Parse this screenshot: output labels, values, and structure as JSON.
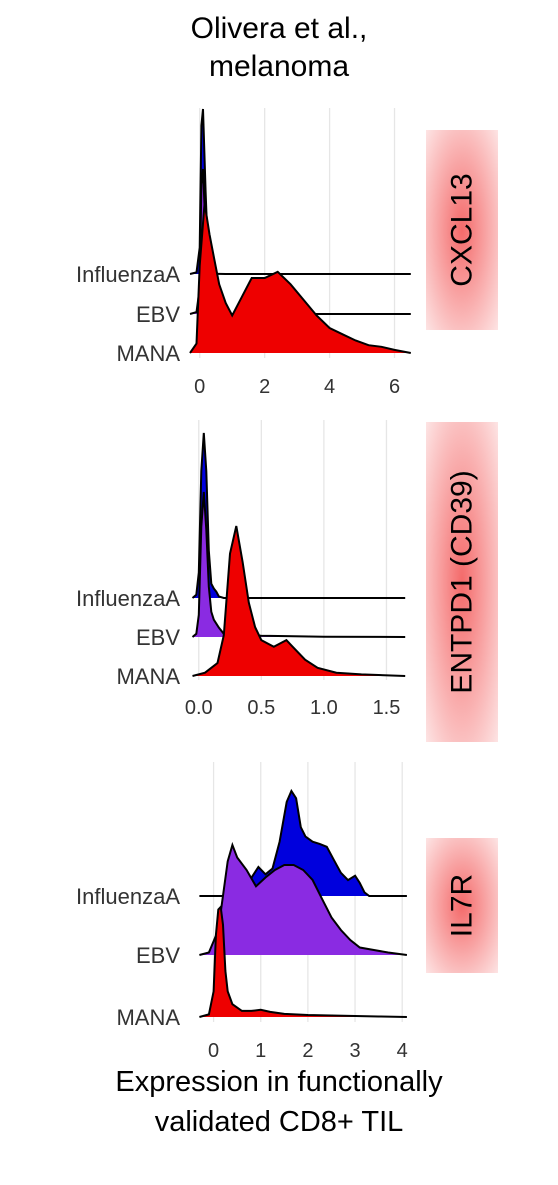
{
  "figure": {
    "title_lines": [
      "Olivera et al.,",
      "melanoma"
    ],
    "xlabel_lines": [
      "Expression in functionally",
      "validated CD8+ TIL"
    ]
  },
  "chart_data": [
    {
      "type": "area",
      "subtype": "ridgeline-density",
      "strip_label": "CXCL13",
      "strip_color": "#f46a6a",
      "xlim": [
        -0.3,
        6.6
      ],
      "xticks": [
        0,
        2,
        4,
        6
      ],
      "xtick_labels": [
        "0",
        "2",
        "4",
        "6"
      ],
      "grid": true,
      "series": [
        {
          "name": "InfluenzaA",
          "color": "#0000dd",
          "points": [
            [
              -0.3,
              0
            ],
            [
              -0.1,
              0.05
            ],
            [
              0.0,
              0.8
            ],
            [
              0.05,
              4.5
            ],
            [
              0.1,
              5.0
            ],
            [
              0.18,
              2.5
            ],
            [
              0.27,
              0.2
            ],
            [
              0.4,
              0.01
            ],
            [
              0.8,
              0
            ],
            [
              6.5,
              0
            ]
          ]
        },
        {
          "name": "EBV",
          "color": "#8a2be2",
          "points": [
            [
              -0.3,
              0
            ],
            [
              -0.1,
              0.05
            ],
            [
              0.0,
              0.7
            ],
            [
              0.05,
              3.5
            ],
            [
              0.1,
              3.9
            ],
            [
              0.18,
              2.2
            ],
            [
              0.27,
              0.3
            ],
            [
              0.4,
              0.02
            ],
            [
              0.8,
              0
            ],
            [
              6.5,
              0
            ]
          ]
        },
        {
          "name": "MANA",
          "color": "#ee0000",
          "points": [
            [
              -0.3,
              0
            ],
            [
              -0.1,
              0.03
            ],
            [
              0.0,
              0.28
            ],
            [
              0.15,
              0.48
            ],
            [
              0.3,
              0.38
            ],
            [
              0.45,
              0.3
            ],
            [
              0.6,
              0.22
            ],
            [
              0.8,
              0.16
            ],
            [
              1.0,
              0.12
            ],
            [
              1.3,
              0.18
            ],
            [
              1.6,
              0.24
            ],
            [
              2.0,
              0.24
            ],
            [
              2.4,
              0.26
            ],
            [
              2.8,
              0.22
            ],
            [
              3.2,
              0.17
            ],
            [
              3.6,
              0.12
            ],
            [
              4.0,
              0.08
            ],
            [
              4.4,
              0.06
            ],
            [
              4.8,
              0.04
            ],
            [
              5.2,
              0.025
            ],
            [
              5.6,
              0.02
            ],
            [
              6.0,
              0.01
            ],
            [
              6.5,
              0
            ]
          ]
        }
      ]
    },
    {
      "type": "area",
      "subtype": "ridgeline-density",
      "strip_label": "ENTPD1 (CD39)",
      "strip_color": "#f46a6a",
      "xlim": [
        -0.07,
        1.72
      ],
      "xticks": [
        0.0,
        0.5,
        1.0,
        1.5
      ],
      "xtick_labels": [
        "0.0",
        "0.5",
        "1.0",
        "1.5"
      ],
      "grid": true,
      "series": [
        {
          "name": "InfluenzaA",
          "color": "#0000dd",
          "points": [
            [
              -0.05,
              0
            ],
            [
              -0.02,
              0.1
            ],
            [
              0.0,
              0.8
            ],
            [
              0.02,
              4.0
            ],
            [
              0.04,
              5.2
            ],
            [
              0.06,
              4.0
            ],
            [
              0.08,
              1.5
            ],
            [
              0.1,
              0.45
            ],
            [
              0.12,
              0.3
            ],
            [
              0.14,
              0.2
            ],
            [
              0.16,
              0.05
            ],
            [
              0.2,
              0
            ],
            [
              1.65,
              0
            ]
          ]
        },
        {
          "name": "EBV",
          "color": "#8a2be2",
          "points": [
            [
              -0.05,
              0
            ],
            [
              -0.02,
              0.1
            ],
            [
              0.0,
              0.7
            ],
            [
              0.02,
              3.5
            ],
            [
              0.04,
              4.6
            ],
            [
              0.06,
              3.4
            ],
            [
              0.08,
              1.6
            ],
            [
              0.1,
              0.8
            ],
            [
              0.12,
              0.55
            ],
            [
              0.16,
              0.3
            ],
            [
              0.2,
              0.1
            ],
            [
              0.3,
              0.04
            ],
            [
              0.4,
              0.06
            ],
            [
              0.5,
              0.04
            ],
            [
              0.7,
              0.03
            ],
            [
              1.0,
              0.01
            ],
            [
              1.65,
              0
            ]
          ]
        },
        {
          "name": "MANA",
          "color": "#ee0000",
          "points": [
            [
              -0.05,
              0
            ],
            [
              0.05,
              0.02
            ],
            [
              0.15,
              0.08
            ],
            [
              0.2,
              0.25
            ],
            [
              0.25,
              0.75
            ],
            [
              0.3,
              0.92
            ],
            [
              0.35,
              0.7
            ],
            [
              0.4,
              0.45
            ],
            [
              0.45,
              0.3
            ],
            [
              0.5,
              0.22
            ],
            [
              0.6,
              0.18
            ],
            [
              0.7,
              0.22
            ],
            [
              0.75,
              0.18
            ],
            [
              0.85,
              0.1
            ],
            [
              0.95,
              0.05
            ],
            [
              1.1,
              0.02
            ],
            [
              1.3,
              0.01
            ],
            [
              1.65,
              0
            ]
          ]
        }
      ]
    },
    {
      "type": "area",
      "subtype": "ridgeline-density",
      "strip_label": "IL7R",
      "strip_color": "#f46a6a",
      "xlim": [
        -0.5,
        4.25
      ],
      "xticks": [
        0,
        1,
        2,
        3,
        4
      ],
      "xtick_labels": [
        "0",
        "1",
        "2",
        "3",
        "4"
      ],
      "grid": true,
      "series": [
        {
          "name": "InfluenzaA",
          "color": "#0000dd",
          "points": [
            [
              -0.3,
              0
            ],
            [
              0.4,
              0
            ],
            [
              0.6,
              0.02
            ],
            [
              0.8,
              0.25
            ],
            [
              0.95,
              0.4
            ],
            [
              1.1,
              0.3
            ],
            [
              1.25,
              0.38
            ],
            [
              1.4,
              0.75
            ],
            [
              1.55,
              1.3
            ],
            [
              1.65,
              1.45
            ],
            [
              1.75,
              1.35
            ],
            [
              1.85,
              0.95
            ],
            [
              1.95,
              0.82
            ],
            [
              2.1,
              0.75
            ],
            [
              2.25,
              0.72
            ],
            [
              2.4,
              0.68
            ],
            [
              2.55,
              0.5
            ],
            [
              2.7,
              0.32
            ],
            [
              2.85,
              0.22
            ],
            [
              3.0,
              0.28
            ],
            [
              3.1,
              0.18
            ],
            [
              3.2,
              0.05
            ],
            [
              3.3,
              0
            ],
            [
              4.1,
              0
            ]
          ]
        },
        {
          "name": "EBV",
          "color": "#8a2be2",
          "points": [
            [
              -0.3,
              0
            ],
            [
              -0.1,
              0.02
            ],
            [
              0.1,
              0.2
            ],
            [
              0.3,
              0.75
            ],
            [
              0.4,
              0.88
            ],
            [
              0.5,
              0.78
            ],
            [
              0.7,
              0.68
            ],
            [
              0.9,
              0.55
            ],
            [
              1.1,
              0.62
            ],
            [
              1.3,
              0.68
            ],
            [
              1.5,
              0.72
            ],
            [
              1.7,
              0.72
            ],
            [
              1.9,
              0.68
            ],
            [
              2.1,
              0.6
            ],
            [
              2.3,
              0.45
            ],
            [
              2.5,
              0.3
            ],
            [
              2.7,
              0.2
            ],
            [
              2.9,
              0.12
            ],
            [
              3.1,
              0.06
            ],
            [
              3.4,
              0.04
            ],
            [
              3.7,
              0.02
            ],
            [
              4.1,
              0
            ]
          ]
        },
        {
          "name": "MANA",
          "color": "#ee0000",
          "points": [
            [
              -0.3,
              0
            ],
            [
              -0.1,
              0.05
            ],
            [
              0.0,
              0.5
            ],
            [
              0.05,
              1.6
            ],
            [
              0.1,
              2.1
            ],
            [
              0.15,
              2.15
            ],
            [
              0.2,
              1.8
            ],
            [
              0.25,
              0.9
            ],
            [
              0.3,
              0.5
            ],
            [
              0.4,
              0.25
            ],
            [
              0.6,
              0.12
            ],
            [
              0.8,
              0.12
            ],
            [
              1.0,
              0.14
            ],
            [
              1.2,
              0.1
            ],
            [
              1.5,
              0.06
            ],
            [
              2.0,
              0.04
            ],
            [
              2.5,
              0.03
            ],
            [
              3.0,
              0.02
            ],
            [
              3.5,
              0.01
            ],
            [
              4.1,
              0
            ]
          ]
        }
      ]
    }
  ]
}
